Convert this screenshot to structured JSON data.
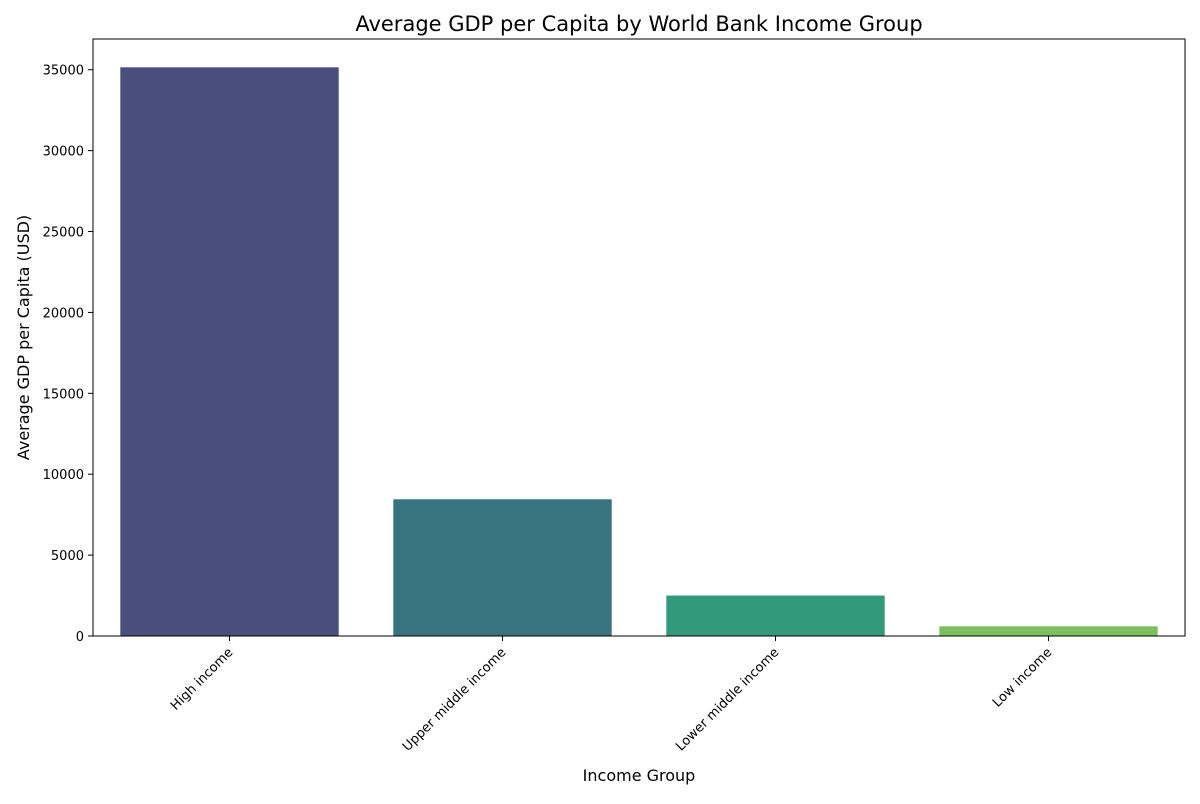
{
  "chart_data": {
    "type": "bar",
    "title": "Average GDP per Capita by World Bank Income Group",
    "xlabel": "Income Group",
    "ylabel": "Average GDP per Capita (USD)",
    "categories": [
      "High income",
      "Upper middle income",
      "Lower middle income",
      "Low income"
    ],
    "values": [
      35150,
      8450,
      2500,
      600
    ],
    "colors": [
      "#4a4e7e",
      "#387480",
      "#329a7b",
      "#7cc05e"
    ],
    "ylim": [
      0,
      36900
    ],
    "yticks": [
      0,
      5000,
      10000,
      15000,
      20000,
      25000,
      30000,
      35000
    ],
    "ytick_labels": [
      "0",
      "5000",
      "10000",
      "15000",
      "20000",
      "25000",
      "30000",
      "35000"
    ],
    "grid": false,
    "legend": "none"
  }
}
